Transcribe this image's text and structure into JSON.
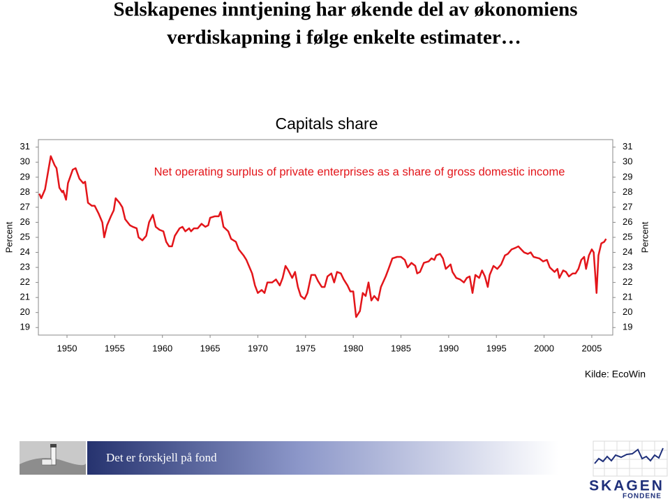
{
  "slide_title": [
    "Selskapenes inntjening har økende del av økonomiens",
    "verdiskapning i følge enkelte estimater…"
  ],
  "chart_data": {
    "type": "line",
    "title": "Capitals share",
    "annotation": "Net operating surplus of private enterprises as a share of gross domestic income",
    "ylabel": "Percent",
    "source": "Kilde: EcoWin",
    "color": "#e3151a",
    "x": [
      1947.1,
      1947.3,
      1947.7,
      1948.3,
      1948.7,
      1948.9,
      1949.2,
      1949.5,
      1949.6,
      1949.9,
      1950.1,
      1950.6,
      1950.9,
      1951.3,
      1951.7,
      1951.9,
      1952.2,
      1952.6,
      1952.9,
      1953.3,
      1953.7,
      1953.9,
      1954.2,
      1954.6,
      1954.9,
      1955.1,
      1955.5,
      1955.8,
      1956.1,
      1956.6,
      1956.9,
      1957.3,
      1957.5,
      1957.9,
      1958.3,
      1958.6,
      1959.0,
      1959.3,
      1959.7,
      1960.1,
      1960.4,
      1960.7,
      1961.0,
      1961.3,
      1961.8,
      1962.1,
      1962.4,
      1962.8,
      1963.0,
      1963.3,
      1963.7,
      1964.1,
      1964.5,
      1964.8,
      1965.0,
      1965.5,
      1965.9,
      1966.1,
      1966.4,
      1966.9,
      1967.2,
      1967.7,
      1968.0,
      1968.5,
      1968.8,
      1969.4,
      1969.7,
      1970.0,
      1970.4,
      1970.7,
      1971.0,
      1971.5,
      1971.9,
      1972.3,
      1972.6,
      1972.9,
      1973.2,
      1973.6,
      1973.9,
      1974.2,
      1974.5,
      1974.9,
      1975.2,
      1975.6,
      1976.0,
      1976.3,
      1976.7,
      1977.0,
      1977.3,
      1977.7,
      1978.0,
      1978.3,
      1978.7,
      1979.0,
      1979.4,
      1979.7,
      1980.0,
      1980.3,
      1980.7,
      1981.0,
      1981.3,
      1981.6,
      1981.9,
      1982.2,
      1982.6,
      1982.9,
      1983.4,
      1983.7,
      1984.1,
      1984.6,
      1985.0,
      1985.4,
      1985.7,
      1986.1,
      1986.5,
      1986.7,
      1987.0,
      1987.4,
      1987.9,
      1988.2,
      1988.5,
      1988.7,
      1989.1,
      1989.4,
      1989.7,
      1990.2,
      1990.4,
      1990.8,
      1991.2,
      1991.6,
      1991.9,
      1992.2,
      1992.5,
      1992.8,
      1993.2,
      1993.5,
      1993.8,
      1994.1,
      1994.3,
      1994.7,
      1995.1,
      1995.5,
      1995.9,
      1996.2,
      1996.6,
      1997.0,
      1997.3,
      1997.6,
      1997.9,
      1998.3,
      1998.6,
      1998.9,
      1999.5,
      1999.9,
      2000.3,
      2000.6,
      2001.1,
      2001.4,
      2001.6,
      2002.0,
      2002.3,
      2002.6,
      2003.0,
      2003.3,
      2003.6,
      2003.9,
      2004.2,
      2004.4,
      2004.7,
      2005.0,
      2005.2,
      2005.5,
      2005.7,
      2006.0,
      2006.3,
      2006.5
    ],
    "values": [
      27.9,
      27.6,
      28.2,
      30.4,
      29.8,
      29.6,
      28.3,
      28.0,
      28.1,
      27.5,
      28.6,
      29.5,
      29.6,
      28.9,
      28.6,
      28.7,
      27.3,
      27.1,
      27.1,
      26.6,
      26.0,
      25.0,
      25.8,
      26.4,
      26.8,
      27.6,
      27.3,
      27.0,
      26.2,
      25.8,
      25.7,
      25.6,
      25.0,
      24.8,
      25.1,
      26.0,
      26.5,
      25.7,
      25.5,
      25.4,
      24.7,
      24.4,
      24.4,
      25.1,
      25.6,
      25.7,
      25.4,
      25.6,
      25.4,
      25.6,
      25.6,
      25.9,
      25.7,
      25.8,
      26.3,
      26.4,
      26.4,
      26.7,
      25.7,
      25.4,
      24.9,
      24.7,
      24.2,
      23.8,
      23.5,
      22.6,
      21.8,
      21.3,
      21.5,
      21.3,
      22.0,
      22.0,
      22.2,
      21.8,
      22.3,
      23.1,
      22.8,
      22.3,
      22.7,
      21.7,
      21.1,
      20.9,
      21.3,
      22.5,
      22.5,
      22.1,
      21.7,
      21.7,
      22.4,
      22.6,
      22.0,
      22.7,
      22.6,
      22.2,
      21.8,
      21.4,
      21.4,
      19.7,
      20.1,
      21.3,
      21.1,
      22.0,
      20.8,
      21.1,
      20.8,
      21.7,
      22.4,
      22.9,
      23.6,
      23.7,
      23.7,
      23.5,
      23.0,
      23.3,
      23.1,
      22.6,
      22.7,
      23.3,
      23.4,
      23.6,
      23.5,
      23.8,
      23.9,
      23.6,
      22.9,
      23.2,
      22.7,
      22.3,
      22.2,
      22.0,
      22.3,
      22.4,
      21.3,
      22.5,
      22.3,
      22.8,
      22.4,
      21.7,
      22.5,
      23.1,
      22.9,
      23.2,
      23.8,
      23.9,
      24.2,
      24.3,
      24.4,
      24.2,
      24.0,
      23.9,
      24.0,
      23.7,
      23.6,
      23.4,
      23.5,
      23.0,
      22.7,
      22.9,
      22.3,
      22.8,
      22.7,
      22.4,
      22.6,
      22.6,
      22.9,
      23.5,
      23.7,
      22.9,
      23.8,
      24.2,
      24.0,
      21.3,
      23.8,
      24.6,
      24.7,
      24.9
    ],
    "xlim": [
      1947,
      2007.2
    ],
    "ylim": [
      18.5,
      31.5
    ],
    "xticks": [
      1950,
      1955,
      1960,
      1965,
      1970,
      1975,
      1980,
      1985,
      1990,
      1995,
      2000,
      2005
    ],
    "yticks": [
      19,
      20,
      21,
      22,
      23,
      24,
      25,
      26,
      27,
      28,
      29,
      30,
      31
    ]
  },
  "footer": {
    "slogan": "Det er forskjell på fond",
    "logo": "SKAGEN",
    "logo_sub": "FONDENE"
  }
}
